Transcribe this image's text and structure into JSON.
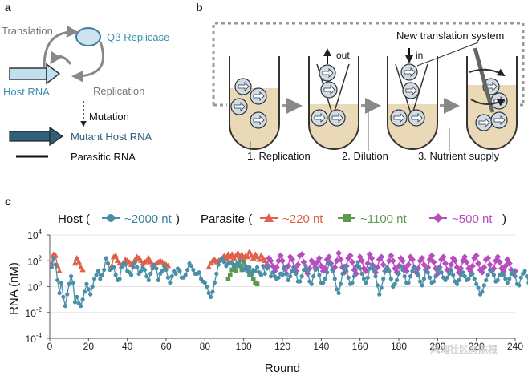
{
  "panel_a": {
    "letter": "a",
    "translation": "Translation",
    "replicase": "Qβ Replicase",
    "host_rna": "Host RNA",
    "replication": "Replication",
    "mutation": "Mutation",
    "mutant_host_rna": "Mutant Host RNA",
    "parasitic_rna": "Parasitic RNA"
  },
  "panel_b": {
    "letter": "b",
    "new_translation_system": "New translation system",
    "out": "out",
    "in": "in",
    "step1": "1. Replication",
    "step2": "2. Dilution",
    "step3": "3. Nutrient supply"
  },
  "panel_c": {
    "letter": "c",
    "host_legend": "Host (",
    "host_marker_label": "~2000 nt",
    "host_close": ")",
    "parasite_legend": "Parasite (",
    "parasite_marker_label_1": "~220 nt",
    "parasite_marker_label_2": "~1100 nt",
    "parasite_marker_label_3": "~500 nt",
    "parasite_close": ")",
    "watermark": "风闻社区@陈根"
  },
  "colors": {
    "host": "#4a8fa8",
    "host_rna": "#5b9bb5",
    "p220": "#e0604a",
    "p1100": "#5f9a4c",
    "p500": "#b74dbf",
    "arrow_gray": "#888888",
    "tube_fill": "#ead9b6"
  },
  "chart_data": {
    "type": "line",
    "xlabel": "Round",
    "ylabel": "RNA (nM)",
    "xlim": [
      0,
      240
    ],
    "ylim_log10": [
      -4,
      4
    ],
    "yscale": "log",
    "xticks": [
      "0",
      "20",
      "40",
      "60",
      "80",
      "100",
      "120",
      "140",
      "160",
      "180",
      "200",
      "220",
      "240"
    ],
    "yticks": [
      "10^-4",
      "10^-2",
      "10^0",
      "10^2",
      "10^4"
    ],
    "grid": true,
    "series": [
      {
        "name": "~2000 nt",
        "marker": "circle",
        "x_start": 1,
        "values_log10": [
          1.5,
          2.2,
          1.7,
          0.5,
          -0.5,
          0.3,
          -0.8,
          -1.5,
          -0.6,
          0.2,
          0.8,
          0.3,
          -1.2,
          -0.8,
          -1.3,
          -1.5,
          -1.0,
          -0.4,
          0.2,
          -0.2,
          -0.6,
          0,
          0.6,
          0.9,
          1.2,
          0.6,
          0.9,
          1.3,
          2.2,
          1.8,
          1.3,
          1.4,
          1.5,
          0.9,
          0.5,
          0.6,
          1.5,
          1.8,
          1.7,
          1.2,
          1.1,
          0.9,
          1.5,
          1.9,
          1.5,
          1.0,
          1.2,
          1.5,
          1.3,
          0.8,
          0.5,
          1.0,
          1.4,
          1.7,
          1.4,
          0.5,
          1.0,
          1.2,
          1.6,
          1.3,
          0.7,
          0.3,
          0.8,
          1.2,
          1.0,
          1.4,
          1.2,
          0.7,
          0.7,
          0.9,
          1.3,
          1.8,
          1.6,
          1.3,
          1.0,
          1.0,
          1.1,
          0.6,
          0.4,
          0.3,
          0,
          -0.5,
          -0.8,
          -0.4,
          0.3,
          1.0,
          1.7,
          2.0,
          2.2,
          1.9,
          1.6,
          1.8,
          1.9,
          1.8,
          1.5,
          1.7,
          1.6,
          2.0,
          1.4,
          1.3,
          1.6,
          1.2,
          1.5,
          0.9,
          1.3,
          1.2,
          1.5,
          1.1,
          0.9,
          1.6,
          1.0,
          1.4,
          1.6,
          0.8,
          1.1,
          0.8,
          0.6,
          0.7,
          1.0,
          0.9,
          1.5,
          1.0,
          0.5,
          0.8,
          1.2,
          1.5,
          1.0,
          0.4,
          0.4,
          0.8,
          1.3,
          1.6,
          1.2,
          0.4,
          0.2,
          0.8,
          1.3,
          1.4,
          0.9,
          0.3,
          0.3,
          0.6,
          1.1,
          1.8,
          1.7,
          1.2,
          0.6,
          -0.2,
          -0.5,
          0.2,
          1.0,
          1.6,
          1.2,
          0.7,
          0.2,
          0.3,
          0.8,
          1.6,
          1.9,
          1.4,
          1.0,
          0.6,
          0.3,
          0.7,
          1.4,
          1.7,
          1.3,
          0.8,
          0.1,
          -0.6,
          -0.1,
          0.6,
          1.2,
          1.5,
          1.2,
          0.6,
          0,
          0.2,
          0.5,
          1.0,
          1.6,
          1.3,
          0.8,
          0.3,
          0.3,
          0.8,
          1.2,
          1.5,
          1.4,
          0.9,
          0.4,
          0.1,
          0.6,
          1.2,
          1.1,
          0.7,
          0.3,
          0.4,
          0.8,
          1.2,
          1.4,
          1.1,
          0.7,
          0.5,
          0.7,
          1.0,
          1.3,
          0.9,
          0.4,
          0.2,
          0.5,
          0.9,
          1.1,
          0.8,
          0.5,
          0.6,
          0.9,
          1.0,
          0.6,
          0.2,
          -0.1,
          -0.6,
          -0.4,
          0.1,
          0.5,
          0.9,
          1.3,
          1.2,
          0.9,
          0.4,
          0.5,
          0.9,
          1.0,
          0.9,
          0.6,
          0.3,
          0.6,
          1.0,
          1.2,
          0.8,
          0.2,
          0.1,
          0.7,
          1.0,
          1.2,
          0.8,
          0.3,
          0.4,
          0.8,
          1.0,
          0.9,
          0.7,
          0.2,
          0.6
        ]
      },
      {
        "name": "~220 nt",
        "marker": "triangle",
        "x_start": 1,
        "values_log10": [
          1.8,
          2.5,
          2.4,
          1.6,
          1.2,
          null,
          null,
          null,
          null,
          null,
          null,
          null,
          1.8,
          2.2,
          1.9,
          1.5,
          1.3,
          null,
          null,
          null,
          null,
          null,
          null,
          null,
          null,
          null,
          null,
          null,
          null,
          null,
          null,
          1.6,
          2.3,
          2.4,
          2.0,
          1.8,
          1.6,
          1.8,
          2.1,
          2.0,
          1.9,
          1.7,
          1.8,
          2.1,
          2.3,
          2.2,
          2.0,
          1.8,
          1.9,
          2.0,
          2.2,
          1.9,
          1.7,
          1.6,
          1.8,
          1.9,
          2.0,
          1.9,
          1.8,
          1.7,
          1.6,
          null,
          null,
          null,
          null,
          null,
          null,
          null,
          null,
          null,
          null,
          null,
          null,
          null,
          null,
          null,
          null,
          null,
          null,
          null,
          null,
          1.5,
          1.8,
          2.0,
          2.1,
          1.9,
          2.0,
          2.1,
          2.2,
          2.4,
          2.2,
          2.5,
          2.3,
          2.5,
          2.2,
          2.4,
          2.6,
          2.3,
          2.5,
          2.2,
          2.4,
          2.3,
          2.7,
          2.4,
          2.2,
          2.5,
          2.3,
          2.1,
          2.4,
          2.2,
          2.0,
          1.8,
          null,
          null,
          null,
          null,
          null,
          null,
          null,
          null,
          null,
          null,
          null,
          null,
          null,
          null,
          null,
          null,
          null,
          null,
          null,
          null,
          null,
          null,
          null,
          null,
          null,
          null,
          null,
          null,
          null,
          null,
          null,
          null,
          null,
          null,
          null,
          null,
          null,
          null,
          null,
          null,
          null,
          null,
          null,
          null,
          null,
          null,
          null,
          null,
          null,
          null,
          null,
          null,
          null,
          null,
          null,
          null,
          null,
          null,
          null,
          null,
          null,
          null,
          null,
          null,
          null,
          null,
          null,
          null,
          null,
          null,
          null,
          null,
          null,
          null,
          null,
          null,
          null,
          null,
          null,
          null,
          null,
          null,
          null,
          null,
          null,
          null,
          null,
          null,
          null,
          null,
          null,
          null,
          null,
          null,
          null,
          null,
          null,
          null,
          null,
          null,
          null,
          null,
          null,
          null,
          null,
          null,
          null,
          null,
          null,
          null,
          null,
          null,
          null,
          null,
          null,
          null,
          null,
          null,
          null,
          null,
          null,
          null,
          null,
          null,
          null,
          null,
          null,
          null,
          null
        ]
      },
      {
        "name": "~1100 nt",
        "marker": "square",
        "x_start": 92,
        "values_log10": [
          0.6,
          0.9,
          1.3,
          1.5,
          1.2,
          1.8,
          1.6,
          1.3,
          1.9,
          1.5,
          1.2,
          0.9,
          1.1,
          0.6,
          0.3,
          0.2
        ]
      },
      {
        "name": "~500 nt",
        "marker": "diamond",
        "x_start": 112,
        "values_log10": [
          1.5,
          2.2,
          2.0,
          1.6,
          1.2,
          1.5,
          2.0,
          2.4,
          2.0,
          1.4,
          1.0,
          1.6,
          2.3,
          2.1,
          1.5,
          1.2,
          1.7,
          2.4,
          2.5,
          1.9,
          1.3,
          1.0,
          1.4,
          2.0,
          1.8,
          1.5,
          1.9,
          2.2,
          1.6,
          1.2,
          1.4,
          2.1,
          2.3,
          1.8,
          1.3,
          1.5,
          2.0,
          2.6,
          2.1,
          1.5,
          1.1,
          1.6,
          2.2,
          2.4,
          1.9,
          1.3,
          1.0,
          1.6,
          2.3,
          2.0,
          1.4,
          1.2,
          1.8,
          2.5,
          2.2,
          1.6,
          1.1,
          1.5,
          2.1,
          2.3,
          1.7,
          1.2,
          1.4,
          2.0,
          2.4,
          2.0,
          1.4,
          1.1,
          1.6,
          2.2,
          2.0,
          1.5,
          1.2,
          1.7,
          2.3,
          2.1,
          1.5,
          1.1,
          1.4,
          2.0,
          2.2,
          1.7,
          1.3,
          1.5,
          2.1,
          2.4,
          1.9,
          1.4,
          1.0,
          1.5,
          2.1,
          2.3,
          1.8,
          1.3,
          1.2,
          1.7,
          2.2,
          2.0,
          1.5,
          1.1,
          1.4,
          2.0,
          2.3,
          1.9,
          1.4,
          1.2,
          1.6,
          2.2,
          2.4,
          1.8,
          1.3,
          1.1,
          1.5,
          2.1,
          2.2,
          1.7,
          1.2,
          1.4,
          2.0,
          2.3,
          1.9,
          1.4,
          1.2,
          1.6,
          2.1,
          1.8,
          1.3,
          1.0,
          1.2
        ]
      }
    ]
  }
}
